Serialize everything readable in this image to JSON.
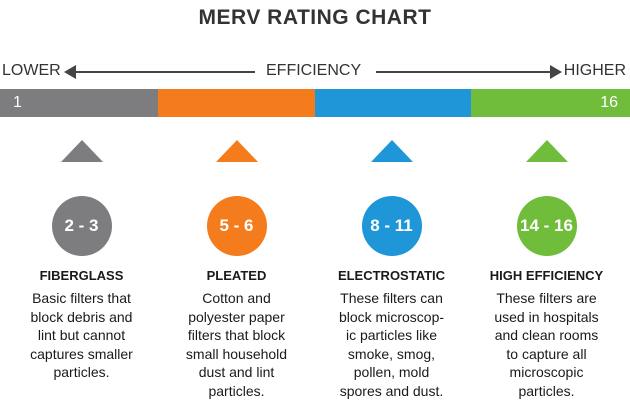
{
  "title": "MERV RATING CHART",
  "efficiency": {
    "lower": "LOWER",
    "label": "EFFICIENCY",
    "higher": "HIGHER"
  },
  "scale": {
    "min": "1",
    "max": "16",
    "colors": [
      "#7d7d80",
      "#f47c1c",
      "#1e96d8",
      "#70bd3c"
    ]
  },
  "categories": [
    {
      "range": "2 - 3",
      "name": "FIBERGLASS",
      "description": "Basic filters that\nblock debris and\nlint but cannot\ncaptures smaller\nparticles.",
      "color": "#7d7d80"
    },
    {
      "range": "5 - 6",
      "name": "PLEATED",
      "description": "Cotton and\npolyester paper\nfilters that block\nsmall household\ndust and lint\nparticles.",
      "color": "#f47c1c"
    },
    {
      "range": "8 - 11",
      "name": "ELECTROSTATIC",
      "description": "These filters can\nblock microscop-\nic particles like\nsmoke, smog,\npollen, mold\nspores and dust.",
      "color": "#1e96d8"
    },
    {
      "range": "14 - 16",
      "name": "HIGH EFFICIENCY",
      "description": "These filters are\nused in hospitals\nand clean rooms\nto capture all\nmicroscopic\nparticles.",
      "color": "#70bd3c"
    }
  ]
}
